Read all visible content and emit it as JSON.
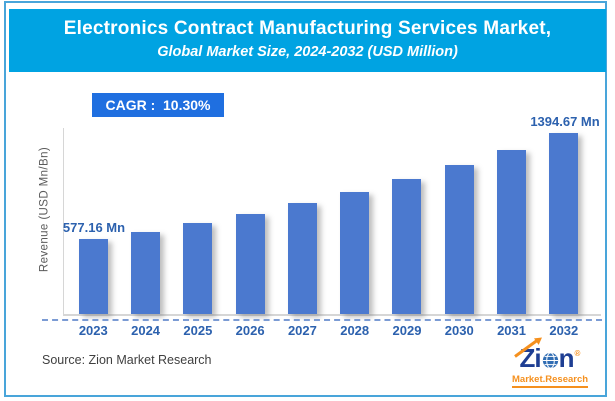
{
  "header": {
    "title": "Electronics Contract Manufacturing Services Market,",
    "subtitle": "Global Market Size, 2024-2032 (USD Million)"
  },
  "cagr": {
    "text": "CAGR :  10.30%"
  },
  "chart_data": {
    "type": "bar",
    "title": "Electronics Contract Manufacturing Services Market",
    "subtitle": "Global Market Size, 2024-2032 (USD Million)",
    "ylabel": "Revenue (USD Mn/Bn)",
    "xlabel": "",
    "categories": [
      "2023",
      "2024",
      "2025",
      "2026",
      "2027",
      "2028",
      "2029",
      "2030",
      "2031",
      "2032"
    ],
    "values": [
      577.16,
      636.61,
      702.18,
      774.51,
      854.28,
      942.27,
      1039.33,
      1146.38,
      1264.45,
      1394.67
    ],
    "cagr_percent": 10.3,
    "ylim": [
      0,
      1500
    ],
    "grid": false,
    "legend": "none",
    "data_labels": {
      "first": "577.16 Mn",
      "last": "1394.67 Mn"
    },
    "bar_color": "#4b79cf"
  },
  "footer": {
    "source": "Source: Zion Market Research",
    "logo": {
      "part1": "Zi",
      "part2": "n",
      "registered": "®",
      "tagline": "Market.Research"
    }
  },
  "colors": {
    "header_bg": "#00a3e2",
    "badge_bg": "#1f6fe0",
    "bar": "#4b79cf",
    "label_blue": "#2c61ae",
    "dashed_line": "#7b9bd4",
    "axis_gray": "#d6d6d6",
    "ylabel_gray": "#5a5a5a",
    "source_text": "#404040",
    "frame_border": "#49a5da",
    "logo_navy": "#1e3e93",
    "logo_orange": "#f5901e"
  }
}
